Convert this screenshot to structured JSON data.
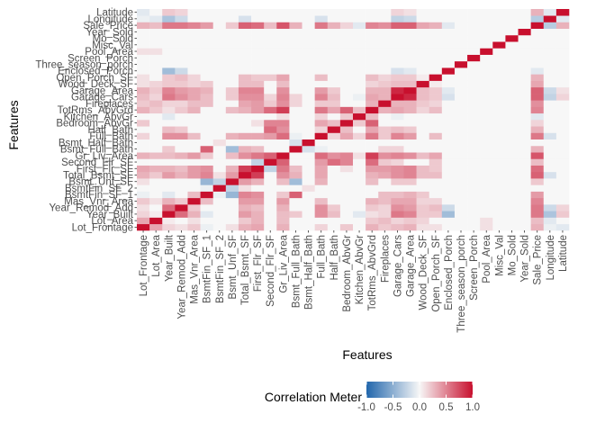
{
  "chart_data": {
    "type": "heatmap",
    "xlabel": "Features",
    "ylabel": "Features",
    "features": [
      "Lot_Frontage",
      "Lot_Area",
      "Year_Built",
      "Year_Remod_Add",
      "Mas_Vnr_Area",
      "BsmtFin_SF_1",
      "BsmtFin_SF_2",
      "Bsmt_Unf_SF",
      "Total_Bsmt_SF",
      "First_Flr_SF",
      "Second_Flr_SF",
      "Gr_Liv_Area",
      "Bsmt_Full_Bath",
      "Bsmt_Half_Bath",
      "Full_Bath",
      "Half_Bath",
      "Bedroom_AbvGr",
      "Kitchen_AbvGr",
      "TotRms_AbvGrd",
      "Fireplaces",
      "Garage_Cars",
      "Garage_Area",
      "Wood_Deck_SF",
      "Open_Porch_SF",
      "Enclosed_Porch",
      "Three_season_porch",
      "Screen_Porch",
      "Pool_Area",
      "Misc_Val",
      "Mo_Sold",
      "Year_Sold",
      "Sale_Price",
      "Longitude",
      "Latitude"
    ],
    "legend": {
      "title": "Correlation Meter",
      "ticks": [
        -1.0,
        -0.5,
        0.0,
        0.5,
        1.0
      ],
      "tick_labels": [
        "-1.0",
        "-0.5",
        "0.0",
        "0.5",
        "1.0"
      ],
      "limits": [
        -1,
        1
      ],
      "position": "bottom"
    },
    "colors": {
      "low": "#2166ac",
      "mid": "#f7f7f7",
      "high": "#c8102e"
    },
    "pairs": [
      [
        "Lot_Frontage",
        "Lot_Area",
        0.35
      ],
      [
        "Lot_Frontage",
        "Year_Built",
        0.15
      ],
      [
        "Lot_Frontage",
        "Year_Remod_Add",
        0.1
      ],
      [
        "Lot_Frontage",
        "Mas_Vnr_Area",
        0.2
      ],
      [
        "Lot_Frontage",
        "BsmtFin_SF_1",
        -0.05
      ],
      [
        "Lot_Frontage",
        "Bsmt_Unf_SF",
        0.1
      ],
      [
        "Lot_Frontage",
        "Total_Bsmt_SF",
        0.3
      ],
      [
        "Lot_Frontage",
        "First_Flr_SF",
        0.35
      ],
      [
        "Lot_Frontage",
        "Gr_Liv_Area",
        0.3
      ],
      [
        "Lot_Frontage",
        "Full_Bath",
        0.15
      ],
      [
        "Lot_Frontage",
        "Bedroom_AbvGr",
        0.2
      ],
      [
        "Lot_Frontage",
        "TotRms_AbvGrd",
        0.3
      ],
      [
        "Lot_Frontage",
        "Fireplaces",
        0.2
      ],
      [
        "Lot_Frontage",
        "Garage_Cars",
        0.25
      ],
      [
        "Lot_Frontage",
        "Garage_Area",
        0.3
      ],
      [
        "Lot_Frontage",
        "Wood_Deck_SF",
        0.1
      ],
      [
        "Lot_Frontage",
        "Open_Porch_SF",
        0.1
      ],
      [
        "Lot_Frontage",
        "Pool_Area",
        0.1
      ],
      [
        "Lot_Frontage",
        "Sale_Price",
        0.3
      ],
      [
        "Lot_Frontage",
        "Longitude",
        -0.05
      ],
      [
        "Lot_Frontage",
        "Latitude",
        -0.1
      ],
      [
        "Lot_Area",
        "Year_Built",
        0.05
      ],
      [
        "Lot_Area",
        "Mas_Vnr_Area",
        0.1
      ],
      [
        "Lot_Area",
        "Total_Bsmt_SF",
        0.2
      ],
      [
        "Lot_Area",
        "First_Flr_SF",
        0.3
      ],
      [
        "Lot_Area",
        "Gr_Liv_Area",
        0.25
      ],
      [
        "Lot_Area",
        "TotRms_AbvGrd",
        0.2
      ],
      [
        "Lot_Area",
        "Fireplaces",
        0.25
      ],
      [
        "Lot_Area",
        "Garage_Area",
        0.2
      ],
      [
        "Lot_Area",
        "Garage_Cars",
        0.15
      ],
      [
        "Lot_Area",
        "Wood_Deck_SF",
        0.15
      ],
      [
        "Lot_Area",
        "Pool_Area",
        0.1
      ],
      [
        "Lot_Area",
        "Sale_Price",
        0.25
      ],
      [
        "Lot_Area",
        "Longitude",
        -0.1
      ],
      [
        "Year_Built",
        "Year_Remod_Add",
        0.6
      ],
      [
        "Year_Built",
        "Mas_Vnr_Area",
        0.3
      ],
      [
        "Year_Built",
        "BsmtFin_SF_1",
        -0.1
      ],
      [
        "Year_Built",
        "Total_Bsmt_SF",
        0.4
      ],
      [
        "Year_Built",
        "First_Flr_SF",
        0.3
      ],
      [
        "Year_Built",
        "Gr_Liv_Area",
        0.25
      ],
      [
        "Year_Built",
        "Bsmt_Full_Bath",
        0.2
      ],
      [
        "Year_Built",
        "Full_Bath",
        0.45
      ],
      [
        "Year_Built",
        "Half_Bath",
        0.25
      ],
      [
        "Year_Built",
        "Kitchen_AbvGr",
        -0.1
      ],
      [
        "Year_Built",
        "TotRms_AbvGrd",
        0.1
      ],
      [
        "Year_Built",
        "Fireplaces",
        0.15
      ],
      [
        "Year_Built",
        "Garage_Cars",
        0.55
      ],
      [
        "Year_Built",
        "Garage_Area",
        0.5
      ],
      [
        "Year_Built",
        "Wood_Deck_SF",
        0.2
      ],
      [
        "Year_Built",
        "Open_Porch_SF",
        0.2
      ],
      [
        "Year_Built",
        "Enclosed_Porch",
        -0.4
      ],
      [
        "Year_Built",
        "Sale_Price",
        0.55
      ],
      [
        "Year_Built",
        "Longitude",
        -0.35
      ],
      [
        "Year_Built",
        "Latitude",
        0.2
      ],
      [
        "Year_Remod_Add",
        "Mas_Vnr_Area",
        0.2
      ],
      [
        "Year_Remod_Add",
        "Total_Bsmt_SF",
        0.3
      ],
      [
        "Year_Remod_Add",
        "First_Flr_SF",
        0.25
      ],
      [
        "Year_Remod_Add",
        "Gr_Liv_Area",
        0.3
      ],
      [
        "Year_Remod_Add",
        "Full_Bath",
        0.45
      ],
      [
        "Year_Remod_Add",
        "Half_Bath",
        0.2
      ],
      [
        "Year_Remod_Add",
        "TotRms_AbvGrd",
        0.2
      ],
      [
        "Year_Remod_Add",
        "Fireplaces",
        0.15
      ],
      [
        "Year_Remod_Add",
        "Garage_Cars",
        0.45
      ],
      [
        "Year_Remod_Add",
        "Garage_Area",
        0.4
      ],
      [
        "Year_Remod_Add",
        "Wood_Deck_SF",
        0.2
      ],
      [
        "Year_Remod_Add",
        "Open_Porch_SF",
        0.25
      ],
      [
        "Year_Remod_Add",
        "Enclosed_Porch",
        -0.2
      ],
      [
        "Year_Remod_Add",
        "Sale_Price",
        0.55
      ],
      [
        "Year_Remod_Add",
        "Longitude",
        -0.2
      ],
      [
        "Year_Remod_Add",
        "Latitude",
        0.15
      ],
      [
        "Mas_Vnr_Area",
        "BsmtFin_SF_1",
        0.25
      ],
      [
        "Mas_Vnr_Area",
        "Total_Bsmt_SF",
        0.4
      ],
      [
        "Mas_Vnr_Area",
        "First_Flr_SF",
        0.4
      ],
      [
        "Mas_Vnr_Area",
        "Gr_Liv_Area",
        0.4
      ],
      [
        "Mas_Vnr_Area",
        "Full_Bath",
        0.25
      ],
      [
        "Mas_Vnr_Area",
        "TotRms_AbvGrd",
        0.3
      ],
      [
        "Mas_Vnr_Area",
        "Fireplaces",
        0.25
      ],
      [
        "Mas_Vnr_Area",
        "Garage_Cars",
        0.35
      ],
      [
        "Mas_Vnr_Area",
        "Garage_Area",
        0.35
      ],
      [
        "Mas_Vnr_Area",
        "Wood_Deck_SF",
        0.15
      ],
      [
        "Mas_Vnr_Area",
        "Open_Porch_SF",
        0.15
      ],
      [
        "Mas_Vnr_Area",
        "Sale_Price",
        0.5
      ],
      [
        "BsmtFin_SF_1",
        "BsmtFin_SF_2",
        -0.05
      ],
      [
        "BsmtFin_SF_1",
        "Bsmt_Unf_SF",
        -0.45
      ],
      [
        "BsmtFin_SF_1",
        "Total_Bsmt_SF",
        0.5
      ],
      [
        "BsmtFin_SF_1",
        "First_Flr_SF",
        0.45
      ],
      [
        "BsmtFin_SF_1",
        "Gr_Liv_Area",
        0.2
      ],
      [
        "BsmtFin_SF_1",
        "Bsmt_Full_Bath",
        0.65
      ],
      [
        "BsmtFin_SF_1",
        "Fireplaces",
        0.25
      ],
      [
        "BsmtFin_SF_1",
        "Garage_Cars",
        0.25
      ],
      [
        "BsmtFin_SF_1",
        "Garage_Area",
        0.3
      ],
      [
        "BsmtFin_SF_1",
        "Wood_Deck_SF",
        0.2
      ],
      [
        "BsmtFin_SF_1",
        "Sale_Price",
        0.4
      ],
      [
        "BsmtFin_SF_2",
        "Bsmt_Unf_SF",
        -0.25
      ],
      [
        "BsmtFin_SF_2",
        "Bsmt_Half_Bath",
        0.1
      ],
      [
        "BsmtFin_SF_2",
        "Total_Bsmt_SF",
        0.1
      ],
      [
        "Bsmt_Unf_SF",
        "Total_Bsmt_SF",
        0.4
      ],
      [
        "Bsmt_Unf_SF",
        "First_Flr_SF",
        0.3
      ],
      [
        "Bsmt_Unf_SF",
        "Gr_Liv_Area",
        0.25
      ],
      [
        "Bsmt_Unf_SF",
        "Bsmt_Full_Bath",
        -0.4
      ],
      [
        "Bsmt_Unf_SF",
        "Full_Bath",
        0.3
      ],
      [
        "Bsmt_Unf_SF",
        "TotRms_AbvGrd",
        0.25
      ],
      [
        "Bsmt_Unf_SF",
        "Garage_Cars",
        0.2
      ],
      [
        "Bsmt_Unf_SF",
        "Garage_Area",
        0.2
      ],
      [
        "Bsmt_Unf_SF",
        "Sale_Price",
        0.2
      ],
      [
        "Total_Bsmt_SF",
        "First_Flr_SF",
        0.8
      ],
      [
        "Total_Bsmt_SF",
        "Gr_Liv_Area",
        0.45
      ],
      [
        "Total_Bsmt_SF",
        "Bsmt_Full_Bath",
        0.3
      ],
      [
        "Total_Bsmt_SF",
        "Full_Bath",
        0.35
      ],
      [
        "Total_Bsmt_SF",
        "TotRms_AbvGrd",
        0.3
      ],
      [
        "Total_Bsmt_SF",
        "Fireplaces",
        0.35
      ],
      [
        "Total_Bsmt_SF",
        "Garage_Cars",
        0.45
      ],
      [
        "Total_Bsmt_SF",
        "Garage_Area",
        0.5
      ],
      [
        "Total_Bsmt_SF",
        "Wood_Deck_SF",
        0.25
      ],
      [
        "Total_Bsmt_SF",
        "Open_Porch_SF",
        0.25
      ],
      [
        "Total_Bsmt_SF",
        "Sale_Price",
        0.65
      ],
      [
        "Total_Bsmt_SF",
        "Longitude",
        -0.15
      ],
      [
        "First_Flr_SF",
        "Second_Flr_SF",
        -0.25
      ],
      [
        "First_Flr_SF",
        "Gr_Liv_Area",
        0.55
      ],
      [
        "First_Flr_SF",
        "Bsmt_Full_Bath",
        0.25
      ],
      [
        "First_Flr_SF",
        "Full_Bath",
        0.35
      ],
      [
        "First_Flr_SF",
        "Bedroom_AbvGr",
        0.1
      ],
      [
        "First_Flr_SF",
        "TotRms_AbvGrd",
        0.4
      ],
      [
        "First_Flr_SF",
        "Fireplaces",
        0.4
      ],
      [
        "First_Flr_SF",
        "Garage_Cars",
        0.45
      ],
      [
        "First_Flr_SF",
        "Garage_Area",
        0.5
      ],
      [
        "First_Flr_SF",
        "Wood_Deck_SF",
        0.25
      ],
      [
        "First_Flr_SF",
        "Open_Porch_SF",
        0.2
      ],
      [
        "First_Flr_SF",
        "Sale_Price",
        0.6
      ],
      [
        "Second_Flr_SF",
        "Gr_Liv_Area",
        0.65
      ],
      [
        "Second_Flr_SF",
        "Full_Bath",
        0.4
      ],
      [
        "Second_Flr_SF",
        "Half_Bath",
        0.6
      ],
      [
        "Second_Flr_SF",
        "Bedroom_AbvGr",
        0.5
      ],
      [
        "Second_Flr_SF",
        "TotRms_AbvGrd",
        0.6
      ],
      [
        "Second_Flr_SF",
        "Fireplaces",
        0.2
      ],
      [
        "Second_Flr_SF",
        "Garage_Cars",
        0.15
      ],
      [
        "Second_Flr_SF",
        "Open_Porch_SF",
        0.2
      ],
      [
        "Second_Flr_SF",
        "Sale_Price",
        0.25
      ],
      [
        "Gr_Liv_Area",
        "Full_Bath",
        0.6
      ],
      [
        "Gr_Liv_Area",
        "Half_Bath",
        0.45
      ],
      [
        "Gr_Liv_Area",
        "Bedroom_AbvGr",
        0.5
      ],
      [
        "Gr_Liv_Area",
        "Kitchen_AbvGr",
        0.1
      ],
      [
        "Gr_Liv_Area",
        "TotRms_AbvGrd",
        0.8
      ],
      [
        "Gr_Liv_Area",
        "Fireplaces",
        0.45
      ],
      [
        "Gr_Liv_Area",
        "Garage_Cars",
        0.5
      ],
      [
        "Gr_Liv_Area",
        "Garage_Area",
        0.45
      ],
      [
        "Gr_Liv_Area",
        "Wood_Deck_SF",
        0.25
      ],
      [
        "Gr_Liv_Area",
        "Open_Porch_SF",
        0.35
      ],
      [
        "Gr_Liv_Area",
        "Sale_Price",
        0.7
      ],
      [
        "Bsmt_Full_Bath",
        "Bsmt_Half_Bath",
        -0.15
      ],
      [
        "Bsmt_Full_Bath",
        "Full_Bath",
        -0.05
      ],
      [
        "Bsmt_Full_Bath",
        "Fireplaces",
        0.15
      ],
      [
        "Bsmt_Full_Bath",
        "Garage_Cars",
        0.15
      ],
      [
        "Bsmt_Full_Bath",
        "Sale_Price",
        0.3
      ],
      [
        "Full_Bath",
        "Half_Bath",
        0.15
      ],
      [
        "Full_Bath",
        "Bedroom_AbvGr",
        0.35
      ],
      [
        "Full_Bath",
        "Kitchen_AbvGr",
        0.15
      ],
      [
        "Full_Bath",
        "TotRms_AbvGrd",
        0.55
      ],
      [
        "Full_Bath",
        "Fireplaces",
        0.2
      ],
      [
        "Full_Bath",
        "Garage_Cars",
        0.5
      ],
      [
        "Full_Bath",
        "Garage_Area",
        0.4
      ],
      [
        "Full_Bath",
        "Open_Porch_SF",
        0.25
      ],
      [
        "Full_Bath",
        "Sale_Price",
        0.55
      ],
      [
        "Full_Bath",
        "Longitude",
        -0.15
      ],
      [
        "Half_Bath",
        "Bedroom_AbvGr",
        0.25
      ],
      [
        "Half_Bath",
        "TotRms_AbvGrd",
        0.35
      ],
      [
        "Half_Bath",
        "Fireplaces",
        0.2
      ],
      [
        "Half_Bath",
        "Garage_Cars",
        0.25
      ],
      [
        "Half_Bath",
        "Garage_Area",
        0.2
      ],
      [
        "Half_Bath",
        "Sale_Price",
        0.3
      ],
      [
        "Bedroom_AbvGr",
        "Kitchen_AbvGr",
        0.2
      ],
      [
        "Bedroom_AbvGr",
        "TotRms_AbvGrd",
        0.65
      ],
      [
        "Bedroom_AbvGr",
        "Sale_Price",
        0.15
      ],
      [
        "Kitchen_AbvGr",
        "TotRms_AbvGrd",
        0.25
      ],
      [
        "Kitchen_AbvGr",
        "Garage_Cars",
        -0.05
      ],
      [
        "Kitchen_AbvGr",
        "Sale_Price",
        -0.1
      ],
      [
        "TotRms_AbvGrd",
        "Fireplaces",
        0.3
      ],
      [
        "TotRms_AbvGrd",
        "Garage_Cars",
        0.35
      ],
      [
        "TotRms_AbvGrd",
        "Garage_Area",
        0.3
      ],
      [
        "TotRms_AbvGrd",
        "Wood_Deck_SF",
        0.15
      ],
      [
        "TotRms_AbvGrd",
        "Open_Porch_SF",
        0.25
      ],
      [
        "TotRms_AbvGrd",
        "Sale_Price",
        0.5
      ],
      [
        "Fireplaces",
        "Garage_Cars",
        0.3
      ],
      [
        "Fireplaces",
        "Garage_Area",
        0.3
      ],
      [
        "Fireplaces",
        "Wood_Deck_SF",
        0.2
      ],
      [
        "Fireplaces",
        "Open_Porch_SF",
        0.15
      ],
      [
        "Fireplaces",
        "Sale_Price",
        0.45
      ],
      [
        "Garage_Cars",
        "Garage_Area",
        0.9
      ],
      [
        "Garage_Cars",
        "Wood_Deck_SF",
        0.25
      ],
      [
        "Garage_Cars",
        "Open_Porch_SF",
        0.2
      ],
      [
        "Garage_Cars",
        "Enclosed_Porch",
        -0.15
      ],
      [
        "Garage_Cars",
        "Sale_Price",
        0.65
      ],
      [
        "Garage_Cars",
        "Longitude",
        -0.25
      ],
      [
        "Garage_Cars",
        "Latitude",
        0.15
      ],
      [
        "Garage_Area",
        "Wood_Deck_SF",
        0.25
      ],
      [
        "Garage_Area",
        "Open_Porch_SF",
        0.2
      ],
      [
        "Garage_Area",
        "Enclosed_Porch",
        -0.1
      ],
      [
        "Garage_Area",
        "Sale_Price",
        0.65
      ],
      [
        "Garage_Area",
        "Longitude",
        -0.2
      ],
      [
        "Garage_Area",
        "Latitude",
        0.1
      ],
      [
        "Wood_Deck_SF",
        "Open_Porch_SF",
        0.05
      ],
      [
        "Wood_Deck_SF",
        "Sale_Price",
        0.35
      ],
      [
        "Open_Porch_SF",
        "Sale_Price",
        0.3
      ],
      [
        "Enclosed_Porch",
        "Sale_Price",
        -0.1
      ],
      [
        "Sale_Price",
        "Longitude",
        -0.3
      ],
      [
        "Sale_Price",
        "Latitude",
        0.3
      ],
      [
        "Longitude",
        "Latitude",
        -0.1
      ]
    ]
  }
}
